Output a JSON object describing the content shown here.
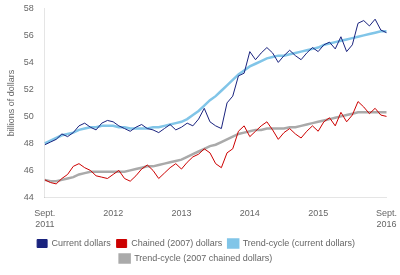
{
  "chart_data": {
    "type": "line",
    "ylabel": "billions of dollars",
    "ylim": [
      44,
      58
    ],
    "yticks": [
      44,
      46,
      48,
      50,
      52,
      54,
      56,
      58
    ],
    "grid": false,
    "legend": "bottom",
    "categories": [
      "Sept.\n2011",
      null,
      null,
      null,
      null,
      null,
      null,
      null,
      null,
      null,
      null,
      null,
      "2012",
      null,
      null,
      null,
      null,
      null,
      null,
      null,
      null,
      null,
      null,
      null,
      "2013",
      null,
      null,
      null,
      null,
      null,
      null,
      null,
      null,
      null,
      null,
      null,
      "2014",
      null,
      null,
      null,
      null,
      null,
      null,
      null,
      null,
      null,
      null,
      null,
      "2015",
      null,
      null,
      null,
      null,
      null,
      null,
      null,
      null,
      null,
      null,
      null,
      "Sept.\n2016"
    ],
    "series": [
      {
        "name": "Current dollars",
        "color": "#1a237e",
        "values": [
          47.9,
          48.1,
          48.3,
          48.7,
          48.5,
          48.8,
          49.3,
          49.5,
          49.2,
          49.0,
          49.5,
          49.7,
          49.6,
          49.3,
          49.1,
          48.9,
          49.2,
          49.4,
          49.1,
          49.0,
          48.8,
          49.1,
          49.4,
          49.0,
          49.2,
          49.5,
          49.3,
          49.8,
          50.6,
          49.6,
          49.3,
          49.1,
          51.0,
          51.5,
          53.0,
          53.2,
          54.8,
          54.2,
          54.7,
          55.1,
          54.7,
          54.0,
          54.5,
          54.9,
          54.5,
          54.2,
          54.7,
          55.1,
          54.8,
          55.3,
          55.5,
          55.0,
          55.9,
          54.8,
          55.3,
          56.9,
          57.1,
          56.7,
          57.2,
          56.4,
          56.2
        ]
      },
      {
        "name": "Trend-cycle (current dollars)",
        "color": "#81c5e8",
        "values": [
          48.0,
          48.2,
          48.4,
          48.6,
          48.7,
          48.8,
          49.0,
          49.1,
          49.2,
          49.2,
          49.3,
          49.3,
          49.3,
          49.2,
          49.2,
          49.1,
          49.1,
          49.1,
          49.1,
          49.2,
          49.2,
          49.3,
          49.4,
          49.5,
          49.6,
          49.8,
          50.1,
          50.4,
          50.8,
          51.2,
          51.5,
          51.9,
          52.3,
          52.7,
          53.1,
          53.4,
          53.7,
          53.9,
          54.1,
          54.3,
          54.4,
          54.5,
          54.5,
          54.6,
          54.7,
          54.8,
          54.9,
          55.0,
          55.1,
          55.3,
          55.4,
          55.5,
          55.6,
          55.7,
          55.8,
          55.9,
          56.0,
          56.1,
          56.2,
          56.3,
          56.3
        ]
      },
      {
        "name": "Chained (2007) dollars",
        "color": "#cc0000",
        "values": [
          45.3,
          45.1,
          45.0,
          45.4,
          45.7,
          46.3,
          46.5,
          46.2,
          46.0,
          45.6,
          45.5,
          45.4,
          45.7,
          46.0,
          45.4,
          45.2,
          45.6,
          46.1,
          46.4,
          46.0,
          45.4,
          45.8,
          46.2,
          46.5,
          46.1,
          46.6,
          47.0,
          47.2,
          47.6,
          47.3,
          46.5,
          46.2,
          47.3,
          47.6,
          48.9,
          49.3,
          48.5,
          48.9,
          49.3,
          49.6,
          49.0,
          48.3,
          48.8,
          49.1,
          48.7,
          48.4,
          48.9,
          49.3,
          48.9,
          49.6,
          49.9,
          49.3,
          50.3,
          49.6,
          50.1,
          51.1,
          50.7,
          50.2,
          50.6,
          50.1,
          50.0
        ]
      },
      {
        "name": "Trend-cycle (2007 chained dollars)",
        "color": "#aaaaaa",
        "values": [
          45.3,
          45.2,
          45.2,
          45.3,
          45.4,
          45.5,
          45.7,
          45.8,
          45.9,
          45.9,
          45.9,
          45.9,
          45.9,
          45.9,
          45.9,
          46.0,
          46.1,
          46.2,
          46.3,
          46.3,
          46.4,
          46.5,
          46.6,
          46.7,
          46.8,
          47.0,
          47.2,
          47.4,
          47.6,
          47.8,
          47.9,
          48.1,
          48.3,
          48.5,
          48.7,
          48.8,
          48.9,
          49.0,
          49.0,
          49.1,
          49.1,
          49.1,
          49.1,
          49.2,
          49.2,
          49.3,
          49.4,
          49.5,
          49.6,
          49.7,
          49.8,
          49.9,
          50.0,
          50.1,
          50.2,
          50.3,
          50.3,
          50.3,
          50.3,
          50.3,
          50.3
        ]
      }
    ]
  }
}
